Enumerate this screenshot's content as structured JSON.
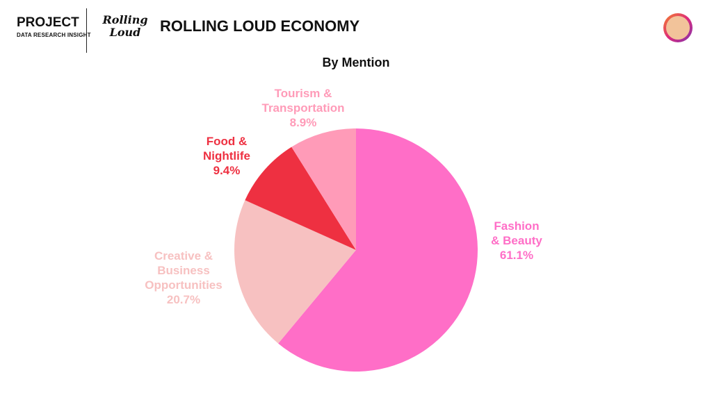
{
  "header": {
    "brand": "PROJECT",
    "brand_subtitle": "DATA RESEARCH INSIGHT",
    "logo": "Rolling\nLoud",
    "title": "ROLLING LOUD ECONOMY"
  },
  "chart_data": {
    "type": "pie",
    "title": "By Mention",
    "categories": [
      "Fashion\n& Beauty",
      "Creative &\nBusiness\nOpportunities",
      "Food &\nNightlife",
      "Tourism &\nTransportation"
    ],
    "values": [
      61.1,
      20.7,
      9.4,
      8.9
    ],
    "value_labels": [
      "61.1%",
      "20.7%",
      "9.4%",
      "8.9%"
    ],
    "colors": [
      "#ff6ec7",
      "#f7c1c1",
      "#ee3041",
      "#ff9bb8"
    ]
  }
}
